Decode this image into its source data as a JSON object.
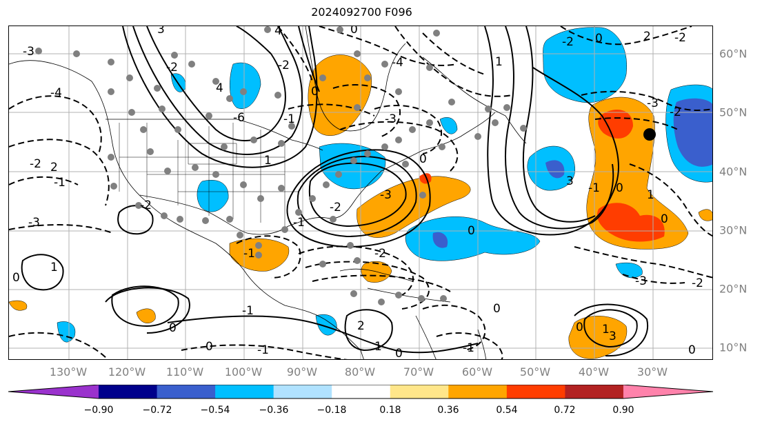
{
  "title": "2024092700 F096",
  "lat_labels": [
    "60°N",
    "50°N",
    "40°N",
    "30°N",
    "20°N",
    "10°N"
  ],
  "lon_labels": [
    "130°W",
    "120°W",
    "110°W",
    "100°W",
    "90°W",
    "80°W",
    "70°W",
    "60°W",
    "50°W",
    "40°W",
    "30°W"
  ],
  "colorbar": {
    "ticks": [
      "−0.90",
      "−0.72",
      "−0.54",
      "−0.36",
      "−0.18",
      "0.18",
      "0.36",
      "0.54",
      "0.72",
      "0.90"
    ],
    "colors": [
      "#9a32cd",
      "#00008b",
      "#3a5fcd",
      "#00bfff",
      "#b0e2ff",
      "#ffffff",
      "#ffe68a",
      "#ffa500",
      "#ff3d00",
      "#b22222",
      "#ff82ab"
    ],
    "extend": "both"
  },
  "contour_labels": [
    "-3",
    "4",
    "-2",
    "-4",
    "3",
    "-2",
    "-2",
    "2",
    "-1",
    "4",
    "-1",
    "-6",
    "0",
    "-4",
    "-3",
    "1",
    "-3",
    "-2",
    "1",
    "0",
    "-1",
    "0",
    "-1",
    "0",
    "-2",
    "0",
    "-3",
    "-2",
    "-1",
    "2",
    "1",
    "0",
    "-1",
    "0",
    "-1",
    "0",
    "1",
    "-2",
    "0",
    "2",
    "-2",
    "3",
    "-3",
    "-2",
    "-1",
    "0",
    "1",
    "0",
    "-3",
    "-2",
    "0",
    "1",
    "3",
    "0",
    "0"
  ],
  "colors": {
    "land_outline": "#000000",
    "grid": "#b0b0b0",
    "station": "#808080",
    "contour": "#000000"
  }
}
